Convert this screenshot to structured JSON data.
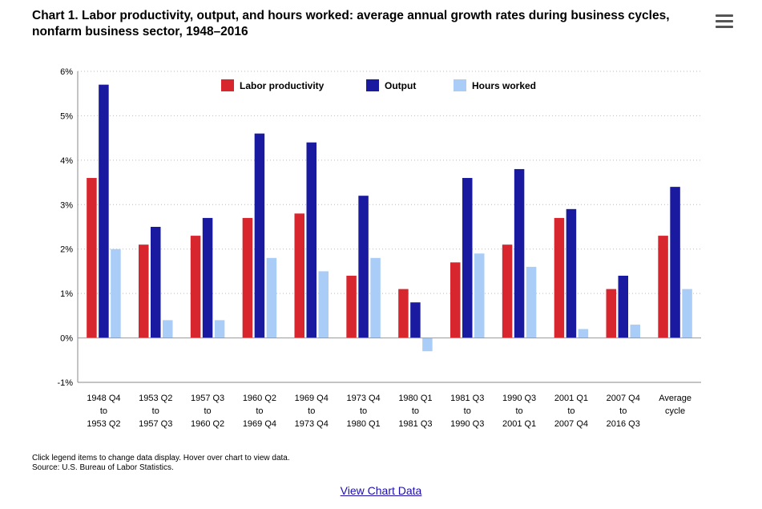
{
  "title": "Chart 1. Labor productivity, output, and hours worked: average annual growth rates during business cycles, nonfarm business sector, 1948–2016",
  "menu_icon": "hamburger-menu-icon",
  "notes": {
    "instruction": "Click legend items to change data display. Hover over chart to view data.",
    "source": "Source: U.S. Bureau of Labor Statistics."
  },
  "view_data_link": "View Chart Data",
  "colors": {
    "labor": "#d8262e",
    "output": "#1a1aa0",
    "hours": "#a9cdf7"
  },
  "chart_data": {
    "type": "bar",
    "ylim": [
      -1,
      6
    ],
    "yticks": [
      "-1%",
      "0%",
      "1%",
      "2%",
      "3%",
      "4%",
      "5%",
      "6%"
    ],
    "categories": [
      [
        "1948 Q4",
        "to",
        "1953 Q2"
      ],
      [
        "1953 Q2",
        "to",
        "1957 Q3"
      ],
      [
        "1957 Q3",
        "to",
        "1960 Q2"
      ],
      [
        "1960 Q2",
        "to",
        "1969 Q4"
      ],
      [
        "1969 Q4",
        "to",
        "1973 Q4"
      ],
      [
        "1973 Q4",
        "to",
        "1980 Q1"
      ],
      [
        "1980 Q1",
        "to",
        "1981 Q3"
      ],
      [
        "1981 Q3",
        "to",
        "1990 Q3"
      ],
      [
        "1990 Q3",
        "to",
        "2001 Q1"
      ],
      [
        "2001 Q1",
        "to",
        "2007 Q4"
      ],
      [
        "2007 Q4",
        "to",
        "2016 Q3"
      ],
      [
        "Average",
        "cycle"
      ]
    ],
    "series": [
      {
        "name": "Labor productivity",
        "key": "labor",
        "values": [
          3.6,
          2.1,
          2.3,
          2.7,
          2.8,
          1.4,
          1.1,
          1.7,
          2.1,
          2.7,
          1.1,
          2.3
        ]
      },
      {
        "name": "Output",
        "key": "output",
        "values": [
          5.7,
          2.5,
          2.7,
          4.6,
          4.4,
          3.2,
          0.8,
          3.6,
          3.8,
          2.9,
          1.4,
          3.4
        ]
      },
      {
        "name": "Hours worked",
        "key": "hours",
        "values": [
          2.0,
          0.4,
          0.4,
          1.8,
          1.5,
          1.8,
          -0.3,
          1.9,
          1.6,
          0.2,
          0.3,
          1.1
        ]
      }
    ],
    "legend_position": "top-center",
    "grid": "horizontal dotted"
  }
}
